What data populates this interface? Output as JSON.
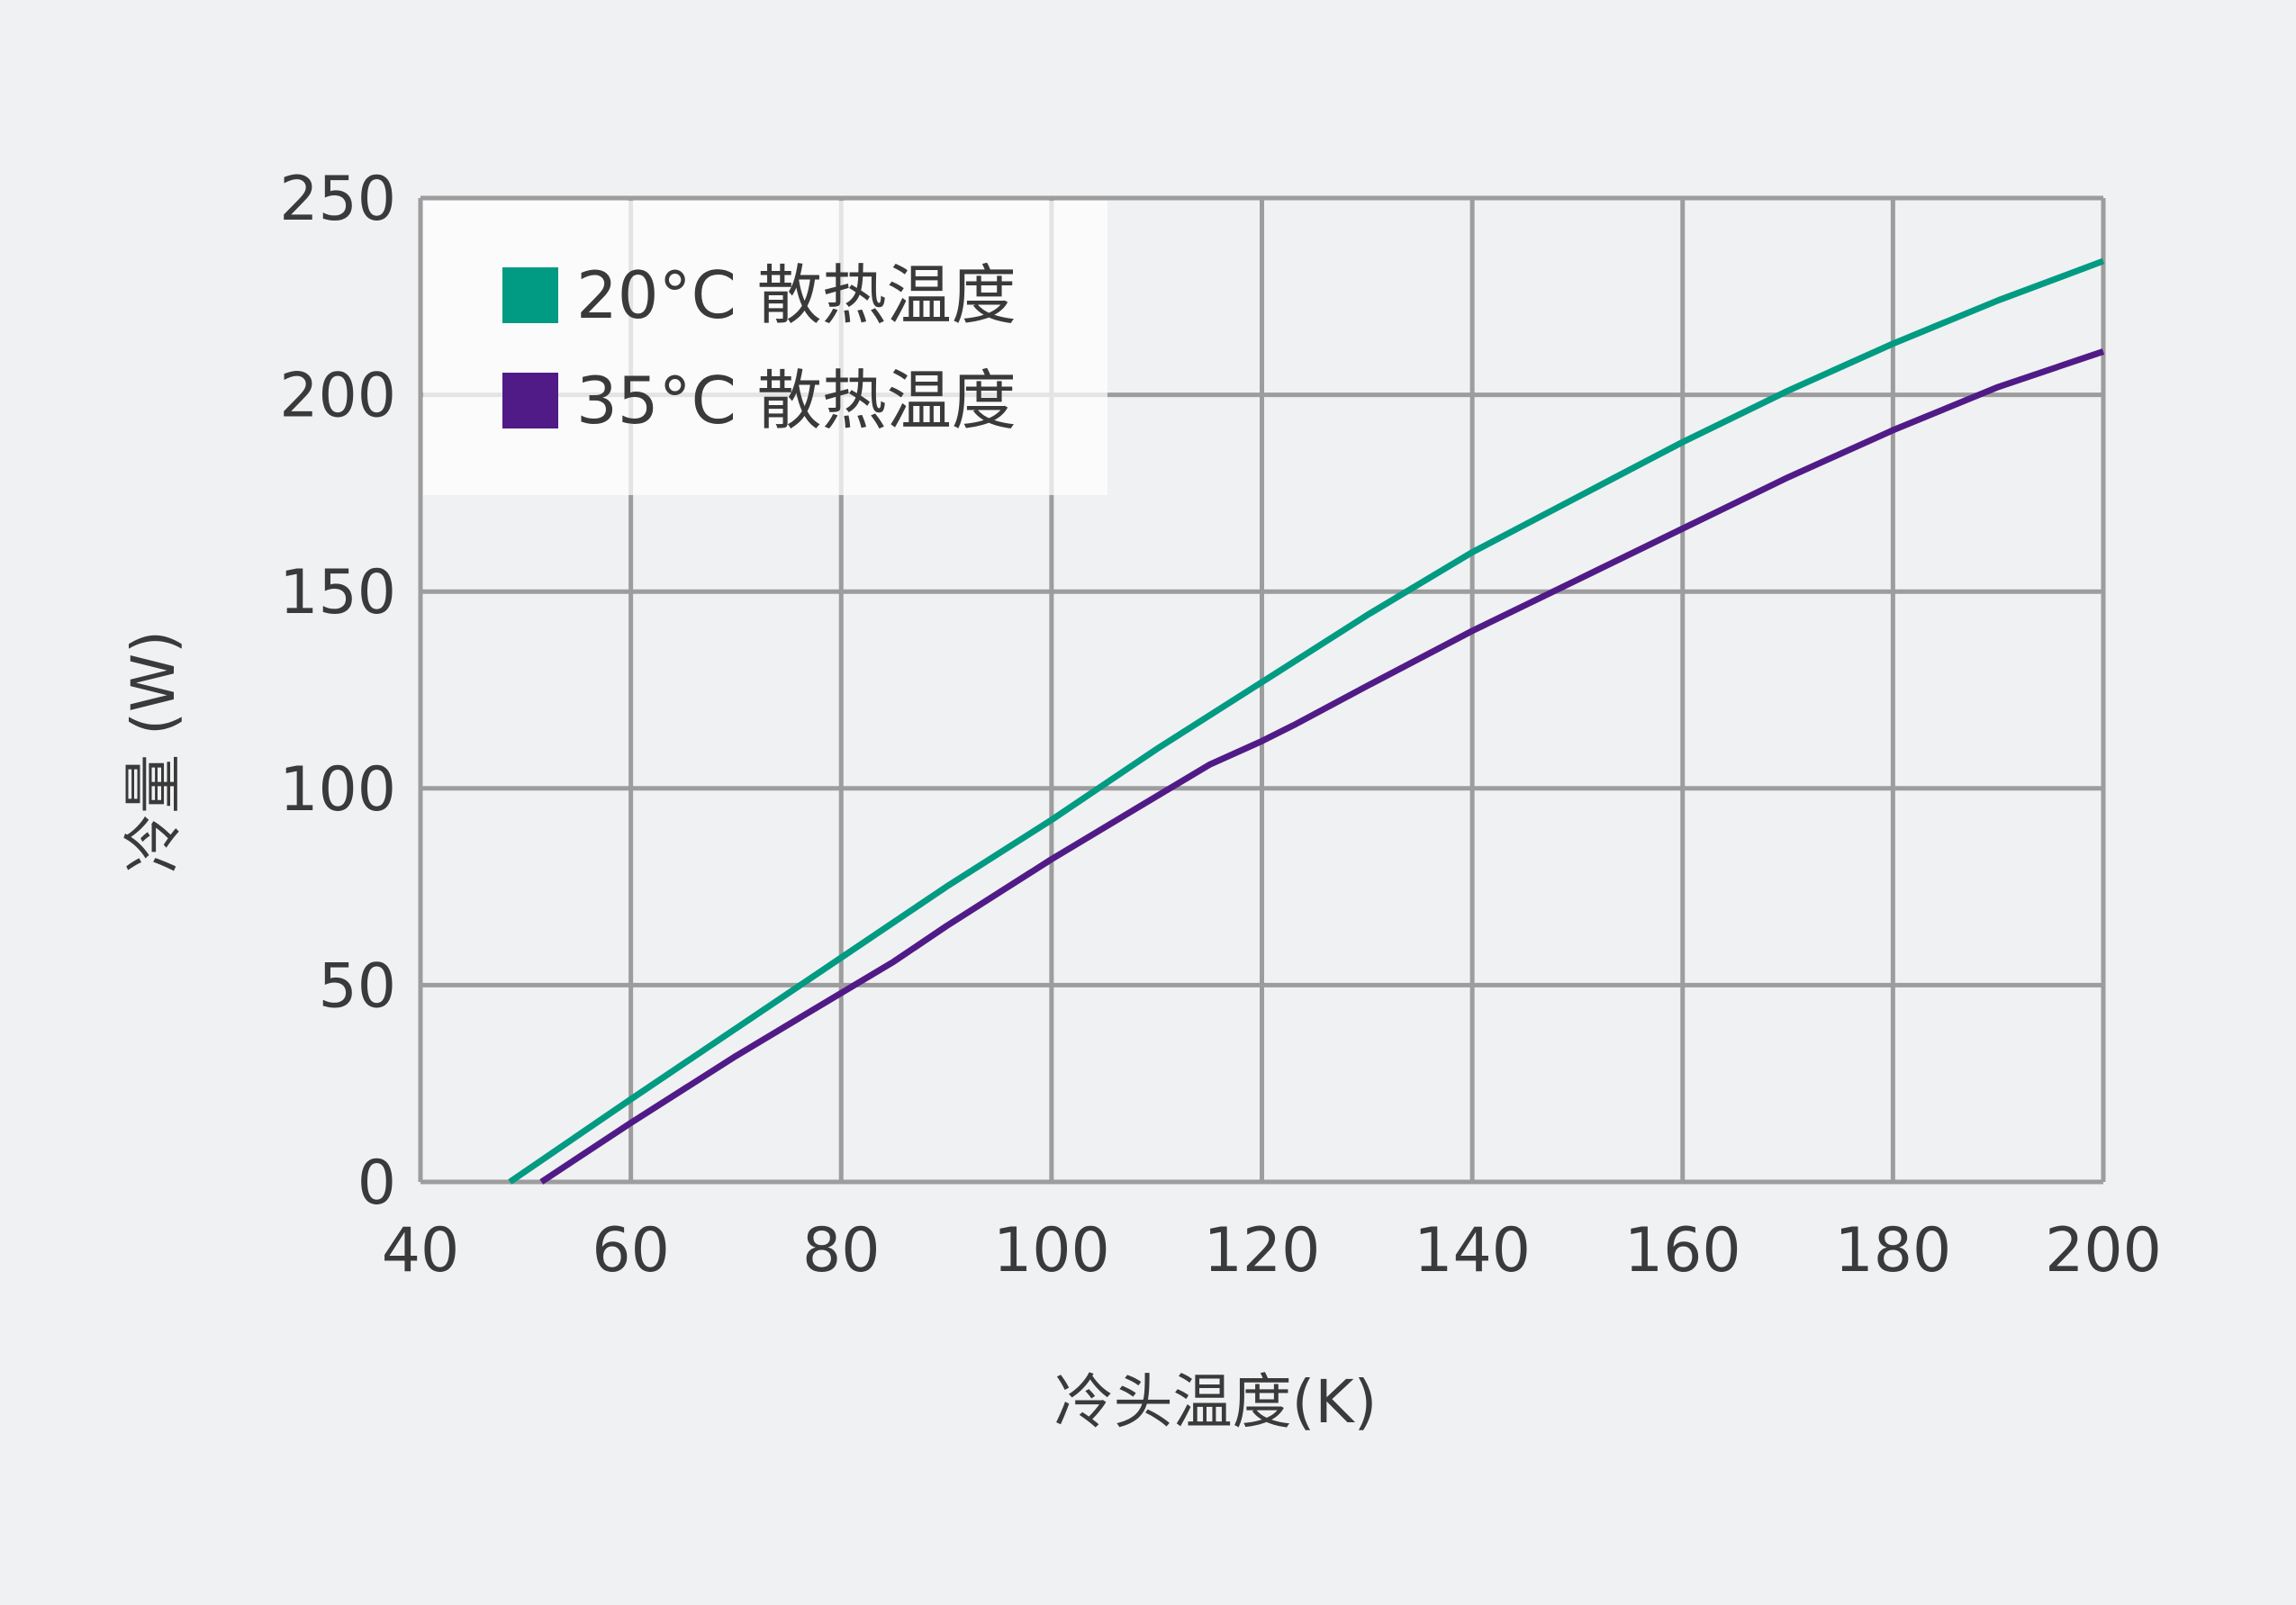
{
  "chart_data": {
    "type": "line",
    "title": "",
    "xlabel": "冷头温度(K)",
    "ylabel": "冷量 (W)",
    "xlim": [
      40,
      200
    ],
    "ylim": [
      0,
      250
    ],
    "x_ticks": [
      40,
      60,
      80,
      100,
      120,
      140,
      160,
      180,
      200
    ],
    "y_ticks": [
      0,
      50,
      100,
      150,
      200,
      250
    ],
    "grid": true,
    "legend_position": "top-left",
    "series": [
      {
        "name": "20°C 散热温度",
        "color": "#009B82",
        "points": [
          [
            48.5,
            0
          ],
          [
            60,
            21
          ],
          [
            70,
            39
          ],
          [
            80,
            57
          ],
          [
            90,
            75
          ],
          [
            100,
            92
          ],
          [
            110,
            110
          ],
          [
            120,
            127
          ],
          [
            130,
            144
          ],
          [
            140,
            160
          ],
          [
            150,
            174
          ],
          [
            160,
            188
          ],
          [
            170,
            201
          ],
          [
            180,
            213
          ],
          [
            190,
            224
          ],
          [
            200,
            234
          ]
        ]
      },
      {
        "name": "35°C 散热温度",
        "color": "#511B87",
        "points": [
          [
            51.5,
            0
          ],
          [
            60,
            15
          ],
          [
            70,
            32
          ],
          [
            80,
            48
          ],
          [
            85,
            56
          ],
          [
            90,
            65
          ],
          [
            100,
            82
          ],
          [
            110,
            98
          ],
          [
            115,
            106
          ],
          [
            120,
            112
          ],
          [
            123,
            116
          ],
          [
            130,
            126
          ],
          [
            140,
            140
          ],
          [
            150,
            153
          ],
          [
            160,
            166
          ],
          [
            170,
            179
          ],
          [
            180,
            191
          ],
          [
            190,
            202
          ],
          [
            200,
            211
          ]
        ]
      }
    ]
  }
}
